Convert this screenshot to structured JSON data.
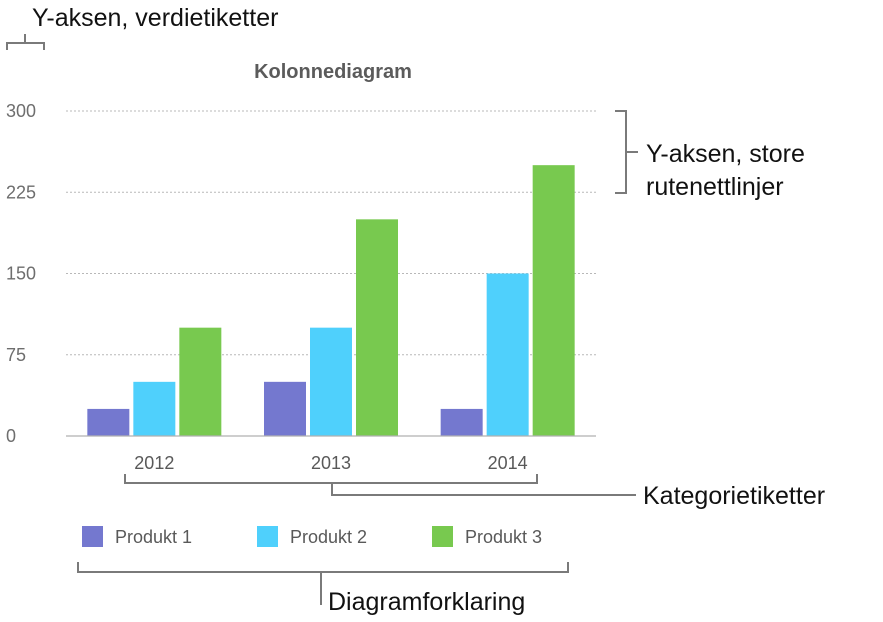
{
  "chart_data": {
    "type": "bar",
    "title": "Kolonnediagram",
    "categories": [
      "2012",
      "2013",
      "2014"
    ],
    "series": [
      {
        "name": "Produkt 1",
        "color": "#7478cf",
        "values": [
          25,
          50,
          25
        ]
      },
      {
        "name": "Produkt 2",
        "color": "#4fd0fc",
        "values": [
          50,
          100,
          150
        ]
      },
      {
        "name": "Produkt 3",
        "color": "#78c94f",
        "values": [
          100,
          200,
          250
        ]
      }
    ],
    "yticks": [
      "0",
      "75",
      "150",
      "225",
      "300"
    ],
    "ylim": [
      0,
      300
    ],
    "grid": true,
    "legend_position": "bottom"
  },
  "callouts": {
    "y_axis_labels": "Y-aksen, verdietiketter",
    "y_axis_gridlines_line1": "Y-aksen, store",
    "y_axis_gridlines_line2": "rutenettlinjer",
    "category_labels": "Kategorietiketter",
    "legend": "Diagramforklaring"
  }
}
